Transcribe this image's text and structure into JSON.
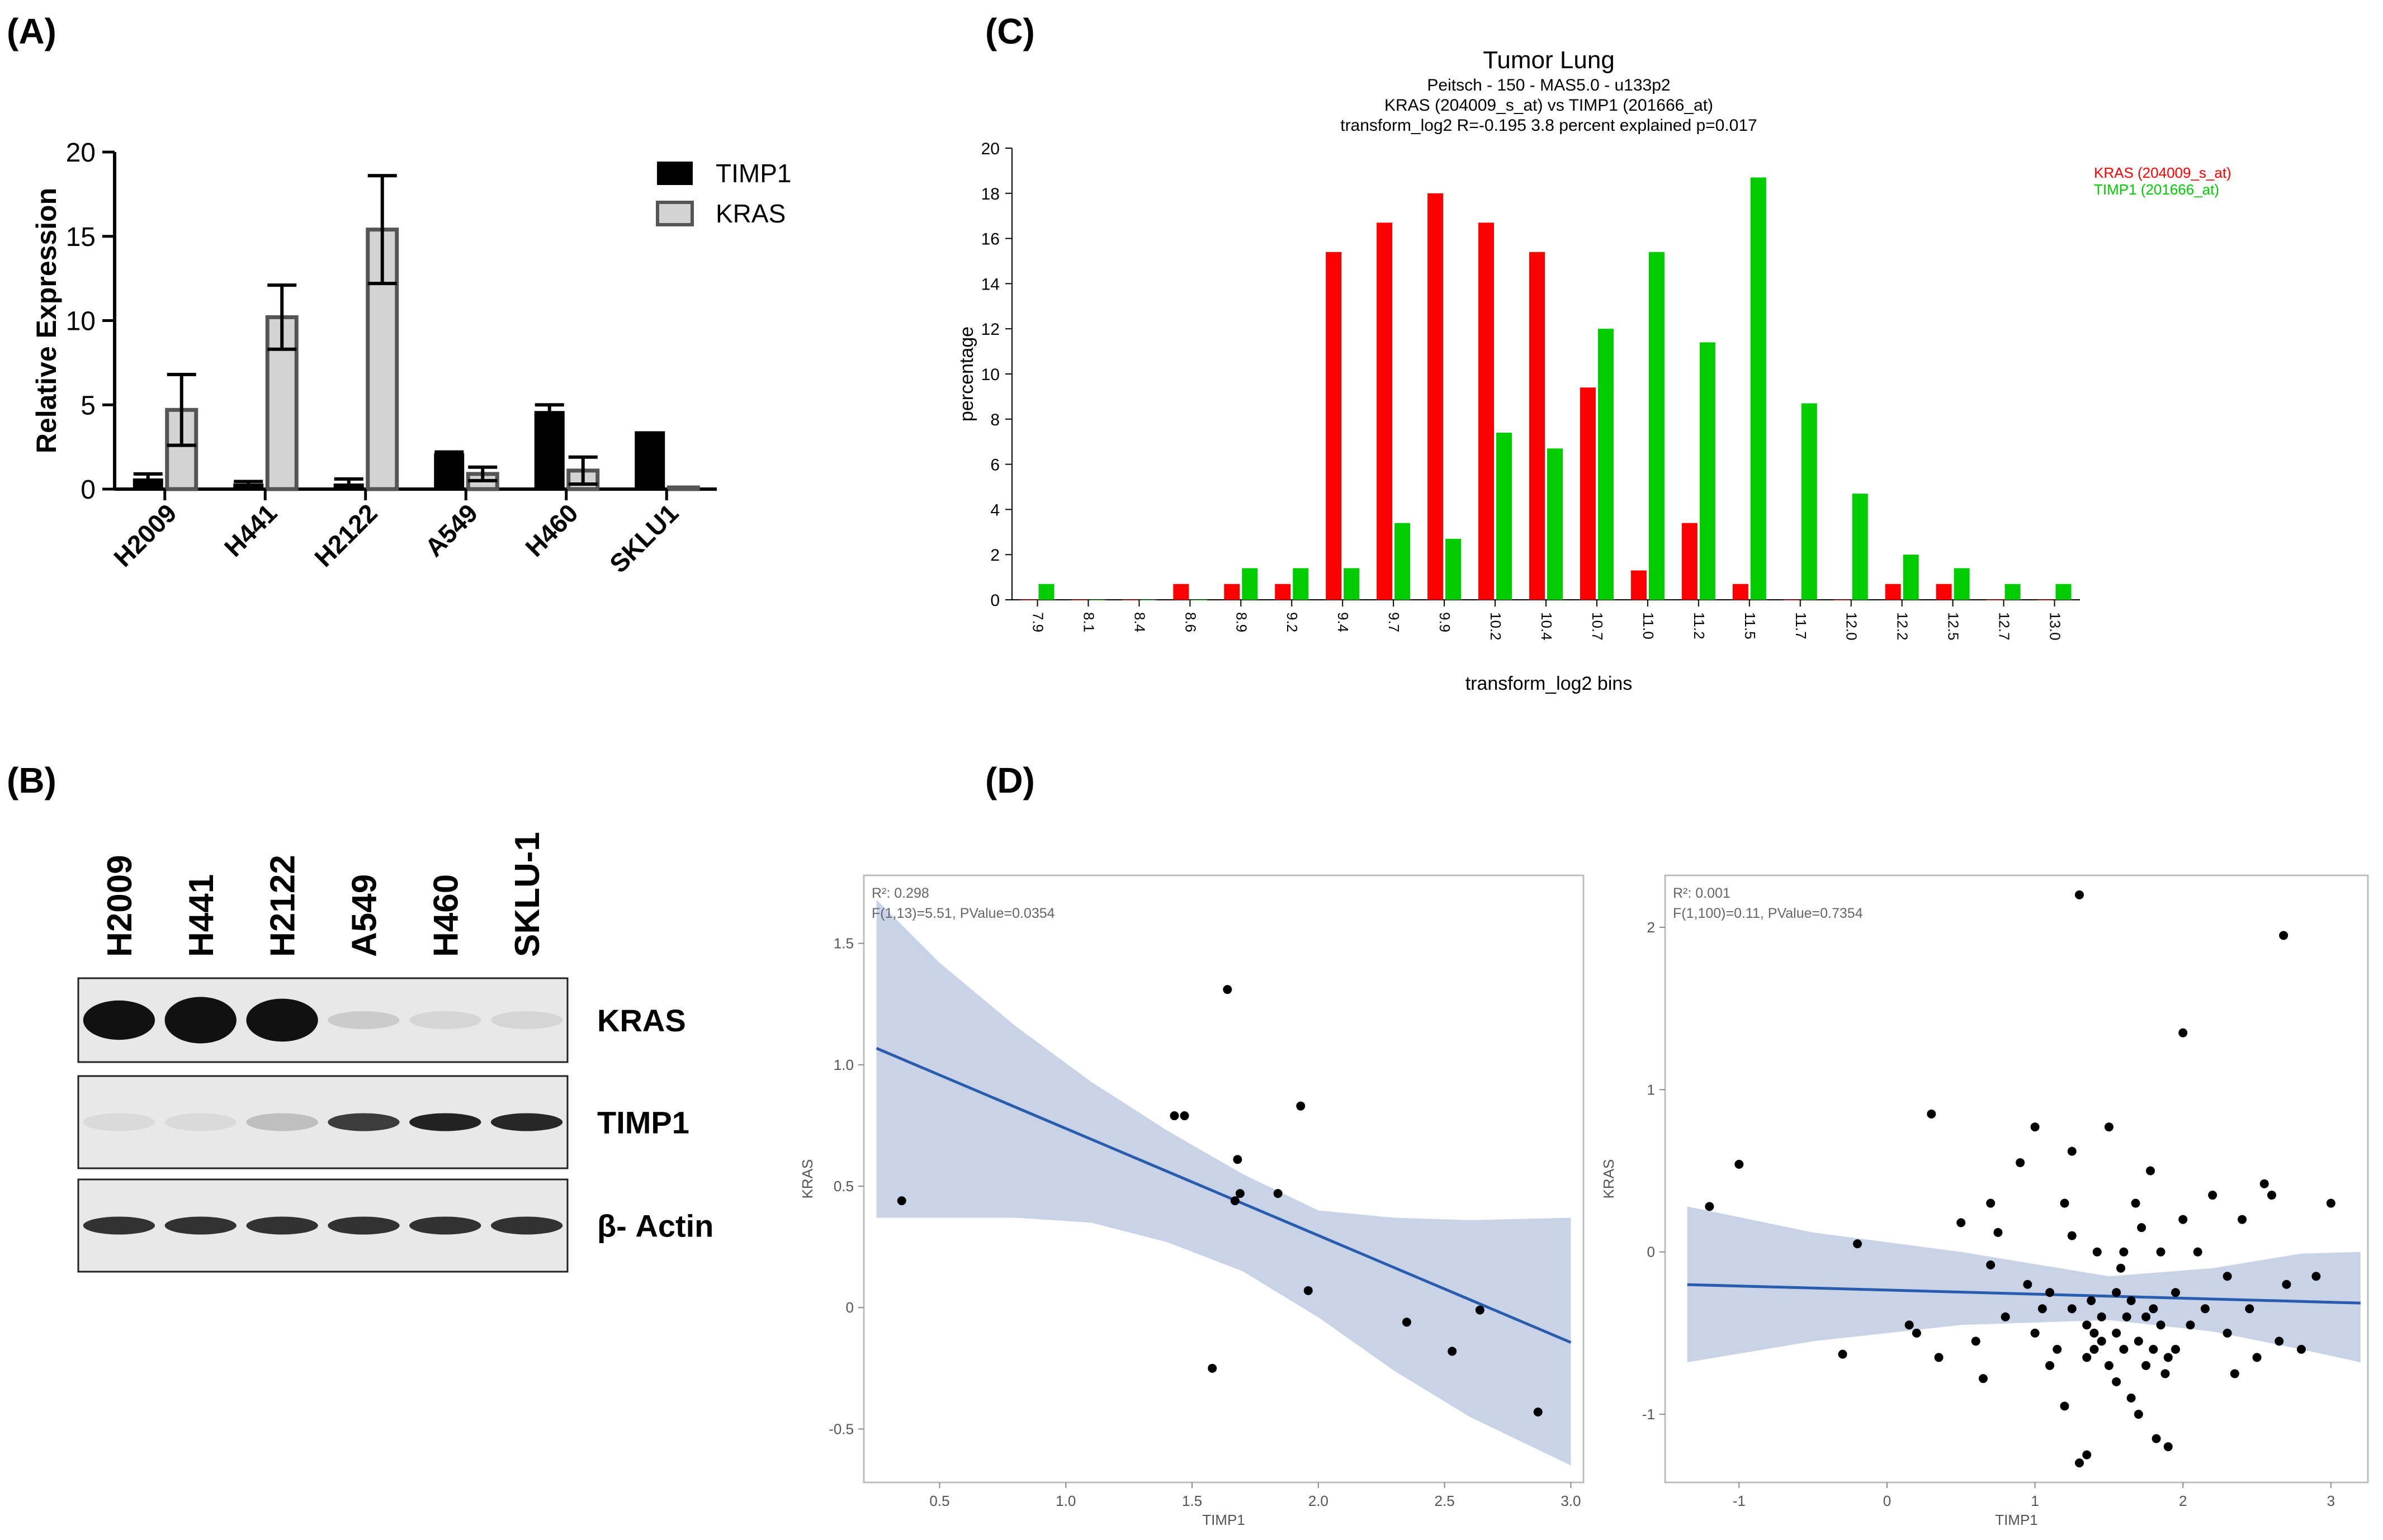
{
  "panels": {
    "a": "(A)",
    "b": "(B)",
    "c": "(C)",
    "d": "(D)"
  },
  "colors": {
    "timp1_bar": "#000000",
    "kras_bar": "#d3d3d3",
    "kras_hist": "#ff0000",
    "timp1_hist": "#00cc00",
    "band_fill": "#c5d1e6",
    "reg_line": "#2a5cae",
    "blot_bg": "#e8e8e8"
  },
  "chart_data": [
    {
      "id": "A",
      "type": "bar",
      "title": "",
      "xlabel": "",
      "ylabel": "Relative Expression",
      "ylim": [
        0,
        20
      ],
      "yticks": [
        0,
        5,
        10,
        15,
        20
      ],
      "categories": [
        "H2009",
        "H441",
        "H2122",
        "A549",
        "H460",
        "SKLU1"
      ],
      "legend_position": "top-right",
      "series": [
        {
          "name": "TIMP1",
          "values": [
            0.6,
            0.3,
            0.3,
            2.1,
            4.6,
            3.4
          ],
          "errors": [
            0.3,
            0.15,
            0.3,
            0.1,
            0.4,
            0
          ]
        },
        {
          "name": "KRAS",
          "values": [
            4.7,
            10.2,
            15.4,
            0.9,
            1.1,
            0.1
          ],
          "errors": [
            2.1,
            1.9,
            3.2,
            0.4,
            0.8,
            0
          ]
        }
      ]
    },
    {
      "id": "C",
      "type": "bar",
      "title": "Tumor Lung",
      "subtitle_lines": [
        "Peitsch - 150 - MAS5.0 - u133p2",
        "KRAS (204009_s_at) vs TIMP1 (201666_at)",
        "transform_log2 R=-0.195 3.8 percent explained p=0.017"
      ],
      "xlabel": "transform_log2 bins",
      "ylabel": "percentage",
      "ylim": [
        0,
        20
      ],
      "yticks": [
        0,
        2,
        4,
        6,
        8,
        10,
        12,
        14,
        16,
        18,
        20
      ],
      "legend_position": "top-right",
      "categories": [
        "7.9",
        "8.1",
        "8.4",
        "8.6",
        "8.9",
        "9.2",
        "9.4",
        "9.7",
        "9.9",
        "10.2",
        "10.4",
        "10.7",
        "11.0",
        "11.2",
        "11.5",
        "11.7",
        "12.0",
        "12.2",
        "12.5",
        "12.7",
        "13.0"
      ],
      "series": [
        {
          "name": "KRAS (204009_s_at)",
          "values": [
            0,
            0,
            0,
            0.7,
            0.7,
            0.7,
            15.4,
            16.7,
            18.0,
            16.7,
            15.4,
            9.4,
            1.3,
            3.4,
            0.7,
            0,
            0,
            0.7,
            0.7,
            0,
            0
          ]
        },
        {
          "name": "TIMP1 (201666_at)",
          "values": [
            0.7,
            0,
            0,
            0,
            1.4,
            1.4,
            1.4,
            3.4,
            2.7,
            7.4,
            6.7,
            12.0,
            15.4,
            11.4,
            18.7,
            8.7,
            4.7,
            2.0,
            1.4,
            0.7,
            0.7
          ]
        }
      ]
    },
    {
      "id": "D1",
      "type": "scatter",
      "annotation_r2": "R²: 0.298",
      "annotation_f": "F(1,13)=5.51, PValue=0.0354",
      "xlabel": "TIMP1",
      "ylabel": "KRAS",
      "xlim": [
        0.2,
        3.05
      ],
      "ylim": [
        -0.72,
        1.78
      ],
      "xticks": [
        0.5,
        1.0,
        1.5,
        2.0,
        2.5,
        3.0
      ],
      "xtick_labels": [
        "0.5",
        "1.0",
        "1.5",
        "2.0",
        "2.5",
        "3.0"
      ],
      "yticks": [
        -0.5,
        0,
        0.5,
        1.0,
        1.5
      ],
      "ytick_labels": [
        "-0.5",
        "0",
        "0.5",
        "1.0",
        "1.5"
      ],
      "points": [
        [
          0.35,
          0.44
        ],
        [
          1.43,
          0.79
        ],
        [
          1.47,
          0.79
        ],
        [
          1.58,
          -0.25
        ],
        [
          1.64,
          1.31
        ],
        [
          1.67,
          0.44
        ],
        [
          1.68,
          0.61
        ],
        [
          1.69,
          0.47
        ],
        [
          1.84,
          0.47
        ],
        [
          1.93,
          0.83
        ],
        [
          1.96,
          0.07
        ],
        [
          2.35,
          -0.06
        ],
        [
          2.53,
          -0.18
        ],
        [
          2.64,
          -0.01
        ],
        [
          2.87,
          -0.43
        ]
      ],
      "fit": {
        "intercept": 1.178,
        "slope": -0.4405
      },
      "ci_band": {
        "x": [
          0.25,
          0.5,
          0.8,
          1.1,
          1.4,
          1.7,
          2.0,
          2.3,
          2.6,
          3.0
        ],
        "upper": [
          1.68,
          1.42,
          1.16,
          0.93,
          0.73,
          0.55,
          0.4,
          0.37,
          0.36,
          0.37
        ],
        "lower": [
          0.37,
          0.37,
          0.37,
          0.35,
          0.27,
          0.15,
          -0.04,
          -0.26,
          -0.45,
          -0.65
        ]
      }
    },
    {
      "id": "D2",
      "type": "scatter",
      "annotation_r2": "R²: 0.001",
      "annotation_f": "F(1,100)=0.11, PValue=0.7354",
      "xlabel": "TIMP1",
      "ylabel": "KRAS",
      "xlim": [
        -1.5,
        3.25
      ],
      "ylim": [
        -1.42,
        2.32
      ],
      "xticks": [
        -1,
        0,
        1,
        2,
        3
      ],
      "xtick_labels": [
        "-1",
        "0",
        "1",
        "2",
        "3"
      ],
      "yticks": [
        -1,
        0,
        1,
        2
      ],
      "ytick_labels": [
        "-1",
        "0",
        "1",
        "2"
      ],
      "points": [
        [
          -1.2,
          0.28
        ],
        [
          -1.0,
          0.54
        ],
        [
          -0.3,
          -0.63
        ],
        [
          -0.2,
          0.05
        ],
        [
          0.15,
          -0.45
        ],
        [
          0.2,
          -0.5
        ],
        [
          0.3,
          0.85
        ],
        [
          0.35,
          -0.65
        ],
        [
          0.5,
          0.18
        ],
        [
          0.6,
          -0.55
        ],
        [
          0.65,
          -0.78
        ],
        [
          0.7,
          -0.08
        ],
        [
          0.7,
          0.3
        ],
        [
          0.75,
          0.12
        ],
        [
          0.8,
          -0.4
        ],
        [
          0.9,
          0.55
        ],
        [
          0.95,
          -0.2
        ],
        [
          1.0,
          -0.5
        ],
        [
          1.0,
          0.77
        ],
        [
          1.05,
          -0.35
        ],
        [
          1.1,
          -0.25
        ],
        [
          1.1,
          -0.7
        ],
        [
          1.15,
          -0.6
        ],
        [
          1.2,
          0.3
        ],
        [
          1.2,
          -0.95
        ],
        [
          1.25,
          0.62
        ],
        [
          1.25,
          0.1
        ],
        [
          1.25,
          -0.35
        ],
        [
          1.3,
          -1.3
        ],
        [
          1.3,
          2.2
        ],
        [
          1.35,
          -1.25
        ],
        [
          1.35,
          -0.45
        ],
        [
          1.35,
          -0.65
        ],
        [
          1.38,
          -0.3
        ],
        [
          1.4,
          -0.5
        ],
        [
          1.4,
          -0.6
        ],
        [
          1.42,
          0.0
        ],
        [
          1.45,
          -0.4
        ],
        [
          1.45,
          -0.55
        ],
        [
          1.5,
          0.77
        ],
        [
          1.5,
          -0.7
        ],
        [
          1.55,
          -0.25
        ],
        [
          1.55,
          -0.5
        ],
        [
          1.55,
          -0.8
        ],
        [
          1.58,
          -0.1
        ],
        [
          1.6,
          0.0
        ],
        [
          1.6,
          -0.6
        ],
        [
          1.62,
          -0.4
        ],
        [
          1.65,
          -0.3
        ],
        [
          1.65,
          -0.9
        ],
        [
          1.68,
          0.3
        ],
        [
          1.7,
          -0.55
        ],
        [
          1.7,
          -1.0
        ],
        [
          1.72,
          0.15
        ],
        [
          1.75,
          -0.4
        ],
        [
          1.75,
          -0.7
        ],
        [
          1.78,
          0.5
        ],
        [
          1.8,
          -0.35
        ],
        [
          1.8,
          -0.6
        ],
        [
          1.82,
          -1.15
        ],
        [
          1.85,
          -0.45
        ],
        [
          1.85,
          0.0
        ],
        [
          1.88,
          -0.75
        ],
        [
          1.9,
          -1.2
        ],
        [
          1.9,
          -0.65
        ],
        [
          1.95,
          -0.25
        ],
        [
          1.95,
          -0.6
        ],
        [
          2.0,
          0.2
        ],
        [
          2.0,
          1.35
        ],
        [
          2.05,
          -0.45
        ],
        [
          2.1,
          0.0
        ],
        [
          2.15,
          -0.35
        ],
        [
          2.2,
          0.35
        ],
        [
          2.3,
          -0.15
        ],
        [
          2.3,
          -0.5
        ],
        [
          2.35,
          -0.75
        ],
        [
          2.4,
          0.2
        ],
        [
          2.45,
          -0.35
        ],
        [
          2.5,
          -0.65
        ],
        [
          2.6,
          0.35
        ],
        [
          2.65,
          -0.55
        ],
        [
          2.7,
          -0.2
        ],
        [
          2.8,
          -0.6
        ],
        [
          2.9,
          -0.15
        ],
        [
          3.0,
          0.3
        ],
        [
          2.55,
          0.42
        ],
        [
          2.68,
          1.95
        ]
      ],
      "fit": {
        "intercept": -0.235,
        "slope": -0.025
      },
      "ci_band": {
        "x": [
          -1.35,
          -0.5,
          0.5,
          1.5,
          2.2,
          2.8,
          3.2
        ],
        "upper": [
          0.28,
          0.12,
          0.0,
          -0.15,
          -0.1,
          -0.01,
          0.0
        ],
        "lower": [
          -0.68,
          -0.55,
          -0.45,
          -0.42,
          -0.49,
          -0.6,
          -0.68
        ]
      }
    }
  ],
  "blot": {
    "lanes": [
      "H2009",
      "H441",
      "H2122",
      "A549",
      "H460",
      "SKLU-1"
    ],
    "rows": [
      {
        "label": "KRAS",
        "intensities": [
          1.0,
          1.0,
          1.0,
          0.15,
          0.1,
          0.1
        ],
        "thickness": [
          2.2,
          2.6,
          2.4,
          1,
          1,
          1
        ]
      },
      {
        "label": "TIMP1",
        "intensities": [
          0.08,
          0.08,
          0.2,
          0.8,
          0.92,
          0.9
        ],
        "thickness": [
          1,
          1,
          1,
          1,
          1,
          1
        ]
      },
      {
        "label": "β- Actin",
        "intensities": [
          0.85,
          0.85,
          0.85,
          0.85,
          0.85,
          0.85
        ],
        "thickness": [
          1,
          1,
          1,
          1,
          1,
          1
        ]
      }
    ]
  }
}
